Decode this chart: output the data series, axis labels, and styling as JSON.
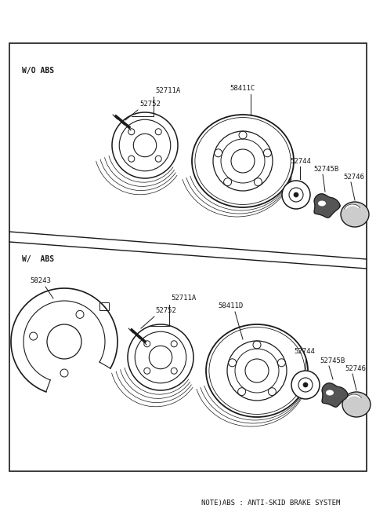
{
  "bg_color": "#ffffff",
  "line_color": "#1a1a1a",
  "text_color": "#1a1a1a",
  "fig_width": 4.8,
  "fig_height": 6.57,
  "dpi": 100,
  "wo_abs_label": "W/O ABS",
  "w_abs_label": "W/  ABS",
  "note_text": "NOTE)ABS : ANTI-SKID BRAKE SYSTEM"
}
